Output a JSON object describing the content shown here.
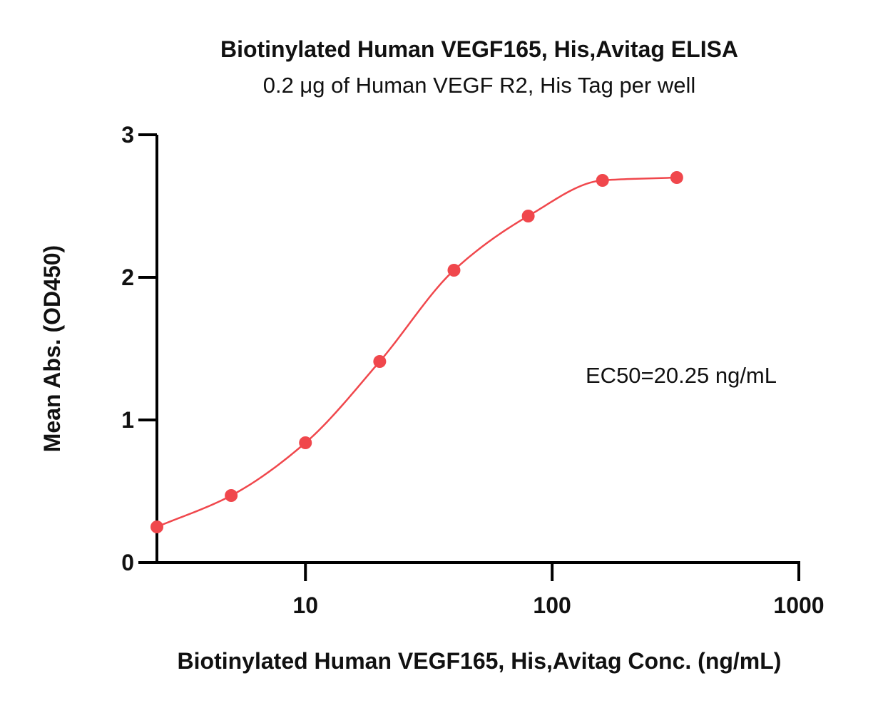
{
  "chart_data": {
    "type": "scatter",
    "title": "Biotinylated Human VEGF165, His,Avitag ELISA",
    "subtitle": "0.2 μg of Human VEGF R2, His Tag per well",
    "xlabel": "Biotinylated Human VEGF165, His,Avitag Conc. (ng/mL)",
    "ylabel": "Mean Abs. (OD450)",
    "x_scale": "log",
    "xlim": [
      2.5,
      1000
    ],
    "ylim": [
      0,
      3
    ],
    "x_ticks": [
      10,
      100,
      1000
    ],
    "x_tick_labels": [
      "10",
      "100",
      "1000"
    ],
    "y_ticks": [
      0,
      1,
      2,
      3
    ],
    "y_tick_labels": [
      "0",
      "1",
      "2",
      "3"
    ],
    "grid": false,
    "annotation": "EC50=20.25 ng/mL",
    "ec50": 20.25,
    "color": "#f0474c",
    "series": [
      {
        "x": [
          2.5,
          5,
          10,
          20,
          40,
          80,
          160,
          320
        ],
        "y": [
          0.25,
          0.47,
          0.84,
          1.41,
          2.05,
          2.43,
          2.68,
          2.7
        ]
      }
    ]
  }
}
